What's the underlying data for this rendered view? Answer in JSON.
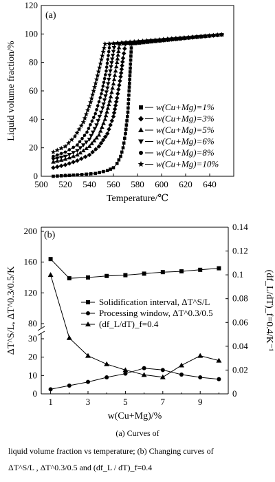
{
  "chart_data": [
    {
      "type": "line",
      "panel_label": "(a)",
      "xlabel": "Temperature/℃",
      "ylabel": "Liquid volume fraction/%",
      "xlim": [
        500,
        660
      ],
      "ylim": [
        0,
        120
      ],
      "xticks": [
        500,
        520,
        540,
        560,
        580,
        600,
        620,
        640
      ],
      "yticks": [
        0,
        20,
        40,
        60,
        80,
        100,
        120
      ],
      "legend_position": "lower right",
      "series": [
        {
          "name": "w(Cu+Mg)=1%",
          "marker": "square",
          "x": [
            510,
            530,
            545,
            555,
            560,
            563,
            566,
            568,
            570,
            572,
            573,
            574,
            575,
            650
          ],
          "y": [
            0,
            1,
            2,
            4,
            6,
            9,
            14,
            20,
            30,
            45,
            60,
            76,
            93,
            99.5
          ]
        },
        {
          "name": "w(Cu+Mg)=3%",
          "marker": "diamond",
          "x": [
            510,
            520,
            530,
            540,
            548,
            555,
            560,
            563,
            566,
            568,
            570,
            650
          ],
          "y": [
            6,
            8,
            11,
            15,
            21,
            30,
            42,
            55,
            70,
            83,
            93,
            99.5
          ]
        },
        {
          "name": "w(Cu+Mg)=5%",
          "marker": "triangle-up",
          "x": [
            510,
            520,
            530,
            540,
            548,
            553,
            557,
            560,
            563,
            565,
            650
          ],
          "y": [
            10,
            12,
            15,
            21,
            29,
            40,
            53,
            65,
            80,
            93,
            99.5
          ]
        },
        {
          "name": "w(Cu+Mg)=6%",
          "marker": "triangle-down",
          "x": [
            510,
            520,
            530,
            540,
            546,
            551,
            555,
            558,
            561,
            650
          ],
          "y": [
            12,
            14,
            18,
            26,
            36,
            48,
            62,
            77,
            93,
            99.5
          ]
        },
        {
          "name": "w(Cu+Mg)=8%",
          "marker": "circle",
          "x": [
            510,
            520,
            530,
            538,
            545,
            550,
            554,
            557,
            650
          ],
          "y": [
            14,
            17,
            22,
            31,
            44,
            58,
            74,
            93,
            99.5
          ]
        },
        {
          "name": "w(Cu+Mg)=10%",
          "marker": "star",
          "x": [
            510,
            520,
            528,
            535,
            541,
            546,
            550,
            553,
            650
          ],
          "y": [
            17,
            21,
            28,
            38,
            52,
            68,
            82,
            93,
            99.5
          ]
        }
      ]
    },
    {
      "type": "line",
      "panel_label": "(b)",
      "xlabel": "w(Cu+Mg)/%",
      "ylabel_left": "ΔT^S/L, ΔT^0.3/0.5/K",
      "ylabel_right": "(df_L/dT)_f=0.4/K⁻¹",
      "x_ticks": [
        1,
        3,
        5,
        7,
        9
      ],
      "y_left_ticks_upper": [
        80,
        120,
        160,
        200
      ],
      "y_left_ticks_lower": [
        0,
        10,
        20,
        30
      ],
      "y_right_ticks": [
        0,
        0.02,
        0.04,
        0.06,
        0.08,
        0.1,
        0.12,
        0.14
      ],
      "y_right_lim": [
        0,
        0.14
      ],
      "legend_position": "center",
      "series": [
        {
          "name": "Solidification interval, ΔT^S/L",
          "marker": "square",
          "axis": "left",
          "x": [
            1,
            2,
            3,
            4,
            5,
            6,
            7,
            8,
            9,
            10
          ],
          "y": [
            164,
            139,
            140,
            142,
            143,
            145,
            147,
            148,
            150,
            152
          ]
        },
        {
          "name": "Processing window, ΔT^0.3/0.5",
          "marker": "circle",
          "axis": "left",
          "x": [
            1,
            2,
            3,
            4,
            5,
            6,
            7,
            8,
            9,
            10
          ],
          "y": [
            2.5,
            4.5,
            6.5,
            9,
            11,
            14,
            13,
            10.5,
            9,
            8
          ]
        },
        {
          "name": "(df_L/dT)_f=0.4",
          "marker": "triangle-up",
          "axis": "right",
          "x": [
            1,
            2,
            3,
            4,
            5,
            6,
            7,
            8,
            9,
            10
          ],
          "y": [
            0.1,
            0.047,
            0.032,
            0.025,
            0.02,
            0.016,
            0.014,
            0.024,
            0.032,
            0.028
          ]
        }
      ]
    }
  ],
  "caption": {
    "line1": "(a) Curves of",
    "line2": "liquid volume fraction vs temperature; (b) Changing curves of",
    "line3": "ΔT^S/L , ΔT^0.3/0.5 and (df_L / dT)_f=0.4"
  }
}
